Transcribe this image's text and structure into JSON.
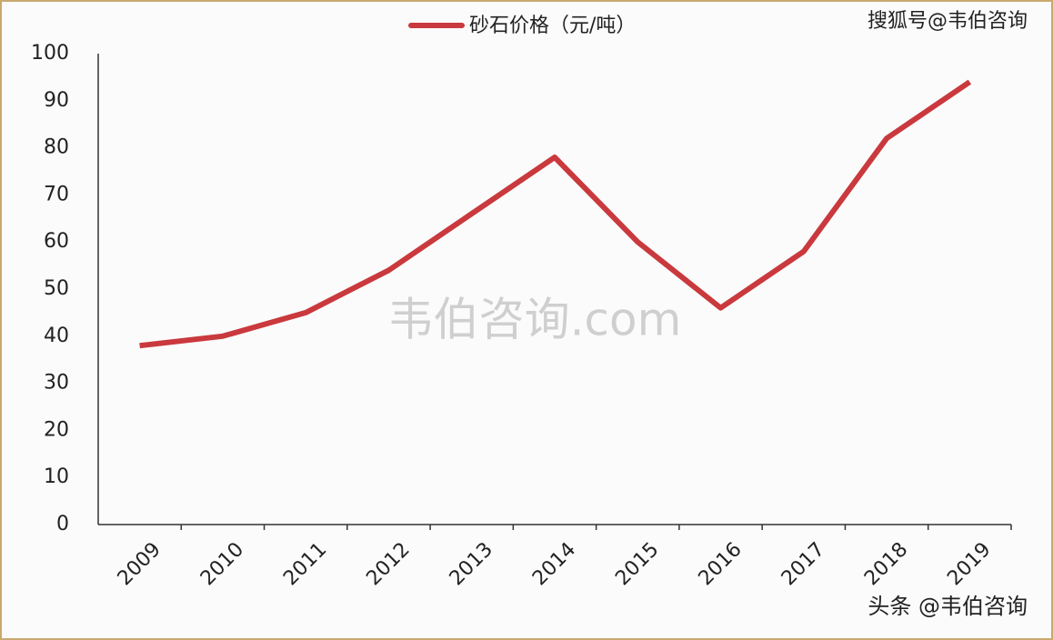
{
  "chart_data": {
    "type": "line",
    "categories": [
      "2009",
      "2010",
      "2011",
      "2012",
      "2013",
      "2014",
      "2015",
      "2016",
      "2017",
      "2018",
      "2019"
    ],
    "series": [
      {
        "name": "砂石价格（元/吨）",
        "color": "#c9393d",
        "values": [
          38,
          40,
          45,
          54,
          66,
          78,
          60,
          46,
          58,
          82,
          94
        ]
      }
    ],
    "ylim": [
      0,
      100
    ],
    "yticks": [
      0,
      10,
      20,
      30,
      40,
      50,
      60,
      70,
      80,
      90,
      100
    ],
    "legend": "top",
    "annotations": [
      "韦伯咨询.com",
      "搜狐号@韦伯咨询",
      "头条 @韦伯咨询"
    ]
  }
}
